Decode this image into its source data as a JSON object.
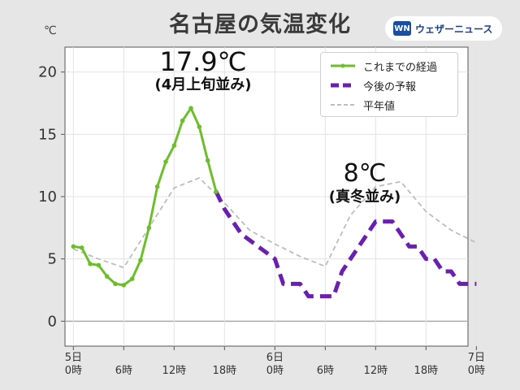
{
  "title": "名古屋の気温変化",
  "logo": {
    "mark": "WN",
    "text": "ウェザーニュース"
  },
  "unit": "℃",
  "colors": {
    "observed": "#6cbf2b",
    "forecast": "#6a1fb0",
    "normal": "#bdbdbd",
    "zero": "#aaaaaa"
  },
  "legend": [
    {
      "label": "これまでの経過"
    },
    {
      "label": "今後の予報"
    },
    {
      "label": "平年値"
    }
  ],
  "annotations": [
    {
      "big": "17.9℃",
      "small": "(4月上旬並み)"
    },
    {
      "big": "8℃",
      "small": "(真冬並み)"
    }
  ],
  "chart_data": {
    "type": "line",
    "ylim": [
      -2,
      22
    ],
    "yticks": [
      0,
      5,
      10,
      15,
      20
    ],
    "xlim": [
      -1,
      47
    ],
    "xticks": [
      {
        "x": 0,
        "label": [
          "5日",
          "0時"
        ]
      },
      {
        "x": 6,
        "label": [
          "6時"
        ]
      },
      {
        "x": 12,
        "label": [
          "12時"
        ]
      },
      {
        "x": 18,
        "label": [
          "18時"
        ]
      },
      {
        "x": 24,
        "label": [
          "6日",
          "0時"
        ]
      },
      {
        "x": 30,
        "label": [
          "6時"
        ]
      },
      {
        "x": 36,
        "label": [
          "12時"
        ]
      },
      {
        "x": 42,
        "label": [
          "18時"
        ]
      },
      {
        "x": 48,
        "label": [
          "7日",
          "0時"
        ]
      }
    ],
    "series": [
      {
        "name": "これまでの経過",
        "x": [
          0,
          1,
          2,
          3,
          4,
          5,
          6,
          7,
          8,
          9,
          10,
          11,
          12,
          13,
          14,
          15,
          16,
          17
        ],
        "y": [
          6.0,
          5.9,
          4.6,
          4.5,
          3.6,
          3.0,
          2.9,
          3.4,
          4.9,
          7.5,
          10.8,
          12.8,
          14.1,
          16.1,
          17.1,
          15.6,
          12.9,
          10.4
        ]
      },
      {
        "name": "今後の予報",
        "x": [
          17,
          18,
          20,
          22,
          24,
          25,
          26,
          27,
          28,
          29,
          30,
          31,
          32,
          33,
          34,
          35,
          36,
          37,
          38,
          39,
          40,
          41,
          42,
          43,
          44,
          45,
          46,
          47,
          48
        ],
        "y": [
          10.4,
          9.0,
          7.0,
          6.0,
          5.0,
          3.0,
          3.0,
          3.0,
          2.0,
          2.0,
          2.0,
          2.0,
          4.0,
          5.0,
          6.0,
          7.0,
          8.0,
          8.0,
          8.0,
          7.0,
          6.0,
          6.0,
          5.0,
          5.0,
          4.0,
          4.0,
          3.0,
          3.0,
          3.0
        ]
      },
      {
        "name": "平年値",
        "x": [
          0,
          3,
          6,
          9,
          12,
          15,
          18,
          21,
          24,
          27,
          30,
          33,
          36,
          39,
          42,
          45,
          48
        ],
        "y": [
          5.8,
          5.0,
          4.3,
          7.5,
          10.7,
          11.5,
          9.5,
          7.3,
          6.2,
          5.2,
          4.4,
          8.5,
          10.8,
          11.2,
          8.8,
          7.3,
          6.3
        ]
      }
    ]
  }
}
